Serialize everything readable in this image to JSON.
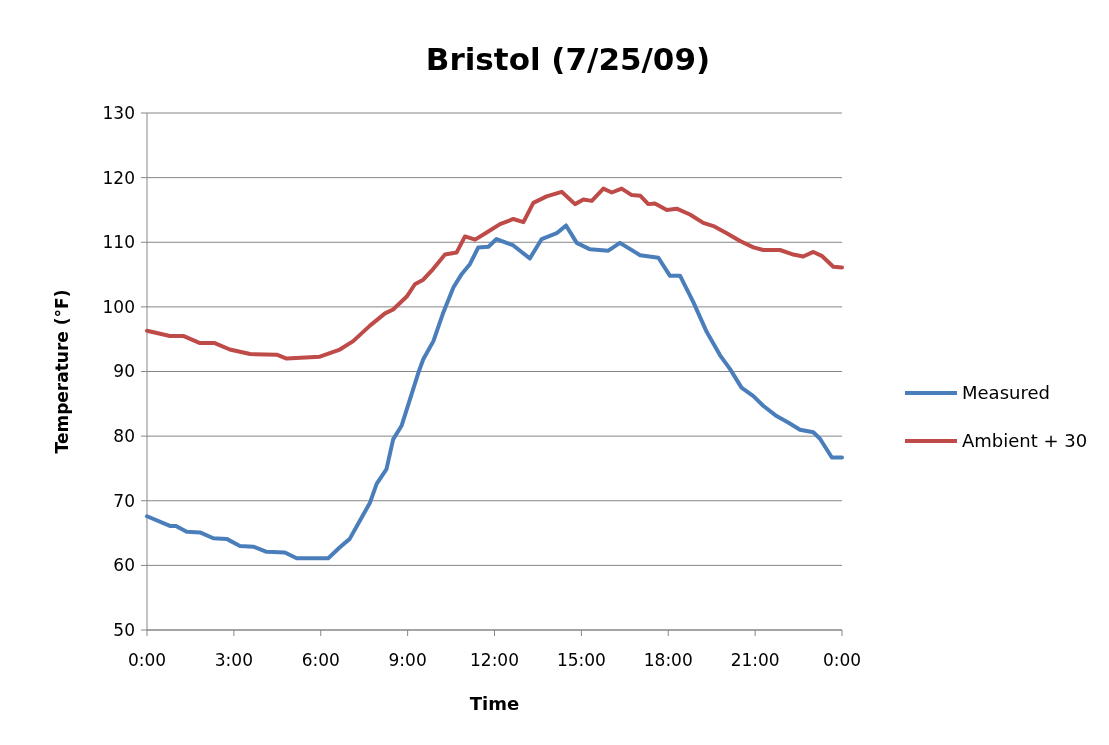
{
  "chart_data": {
    "type": "line",
    "title": "Bristol (7/25/09)",
    "xlabel": "Time",
    "ylabel": "Temperature (°F)",
    "xlim": [
      0,
      24
    ],
    "xticks": [
      {
        "value": 0,
        "label": "0:00"
      },
      {
        "value": 3,
        "label": "3:00"
      },
      {
        "value": 6,
        "label": "6:00"
      },
      {
        "value": 9,
        "label": "9:00"
      },
      {
        "value": 12,
        "label": "12:00"
      },
      {
        "value": 15,
        "label": "15:00"
      },
      {
        "value": 18,
        "label": "18:00"
      },
      {
        "value": 21,
        "label": "21:00"
      },
      {
        "value": 24,
        "label": "0:00"
      }
    ],
    "ylim": [
      50,
      130
    ],
    "yticks": [
      50,
      60,
      70,
      80,
      90,
      100,
      110,
      120,
      130
    ],
    "grid": "y",
    "legend": "right",
    "line_style": "solid",
    "marker": "none",
    "series": [
      {
        "name": "Measured",
        "color": "#4a7ebb",
        "x": [
          0,
          0.79,
          1.0,
          1.37,
          1.83,
          2.29,
          2.75,
          3.21,
          3.67,
          4.13,
          4.76,
          5.17,
          6.26,
          6.66,
          7.0,
          7.35,
          7.7,
          7.93,
          8.27,
          8.5,
          8.79,
          9.08,
          9.37,
          9.54,
          9.89,
          10.23,
          10.58,
          10.87,
          11.15,
          11.44,
          11.79,
          12.07,
          12.65,
          13.22,
          13.63,
          14.15,
          14.47,
          14.84,
          15.3,
          15.93,
          16.33,
          17.03,
          17.66,
          18.06,
          18.41,
          18.87,
          19.33,
          19.79,
          20.13,
          20.53,
          20.94,
          21.28,
          21.74,
          22.14,
          22.55,
          23.01,
          23.24,
          23.65,
          24.0
        ],
        "values": [
          67.6,
          66.1,
          66.1,
          65.2,
          65.1,
          64.2,
          64.1,
          63.0,
          62.9,
          62.1,
          62.0,
          61.1,
          61.1,
          62.8,
          64.1,
          66.9,
          69.7,
          72.6,
          74.9,
          79.5,
          81.6,
          85.7,
          89.8,
          91.9,
          94.7,
          99.1,
          103.0,
          105.1,
          106.6,
          109.2,
          109.3,
          110.5,
          109.5,
          107.5,
          110.5,
          111.4,
          112.6,
          109.9,
          108.9,
          108.7,
          109.9,
          108.0,
          107.6,
          104.8,
          104.8,
          100.7,
          96.1,
          92.5,
          90.4,
          87.5,
          86.2,
          84.7,
          83.1,
          82.1,
          81.0,
          80.6,
          79.6,
          76.7,
          76.7
        ]
      },
      {
        "name": "Ambient + 30",
        "color": "#be4b48",
        "x": [
          0,
          0.79,
          1.25,
          1.83,
          2.34,
          2.86,
          3.56,
          4.48,
          4.82,
          5.97,
          6.66,
          7.12,
          7.7,
          8.22,
          8.5,
          8.97,
          9.25,
          9.54,
          9.83,
          10.29,
          10.69,
          10.98,
          11.33,
          11.73,
          12.19,
          12.65,
          13.0,
          13.34,
          13.8,
          14.32,
          14.78,
          15.07,
          15.36,
          15.76,
          16.05,
          16.39,
          16.74,
          17.03,
          17.31,
          17.54,
          17.95,
          18.29,
          18.75,
          19.21,
          19.56,
          20.02,
          20.48,
          20.94,
          21.28,
          21.86,
          22.32,
          22.66,
          23.01,
          23.3,
          23.7,
          24.0
        ],
        "values": [
          96.3,
          95.5,
          95.5,
          94.4,
          94.4,
          93.4,
          92.7,
          92.6,
          92.0,
          92.3,
          93.4,
          94.7,
          97.1,
          99.0,
          99.6,
          101.6,
          103.5,
          104.2,
          105.6,
          108.1,
          108.4,
          110.9,
          110.4,
          111.5,
          112.8,
          113.6,
          113.1,
          116.1,
          117.1,
          117.8,
          115.9,
          116.6,
          116.4,
          118.3,
          117.7,
          118.3,
          117.3,
          117.2,
          115.9,
          116.0,
          115.0,
          115.2,
          114.3,
          113.0,
          112.5,
          111.4,
          110.2,
          109.2,
          108.8,
          108.8,
          108.1,
          107.8,
          108.5,
          107.9,
          106.2,
          106.1
        ]
      }
    ]
  }
}
